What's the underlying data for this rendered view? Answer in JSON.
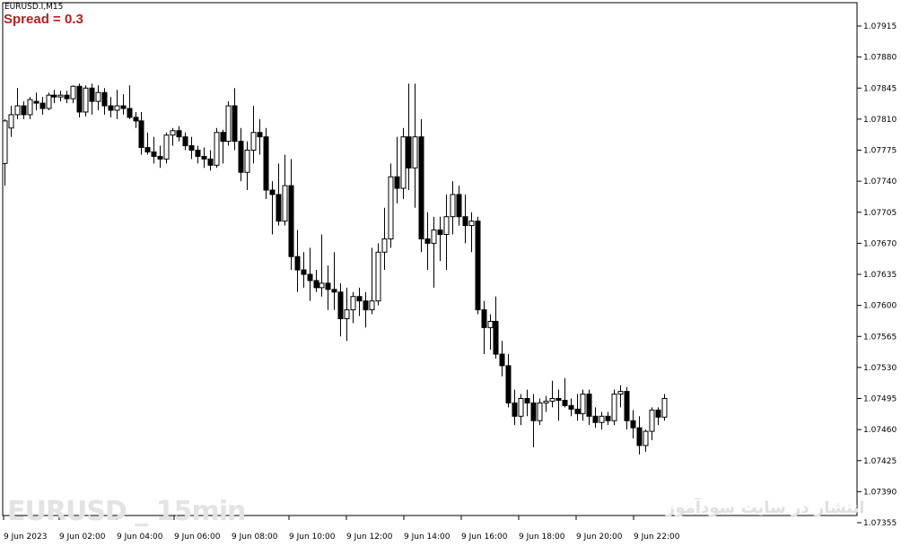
{
  "window": {
    "symbol_label": "EURUSD.I,M15",
    "spread_label": "Spread = 0.3",
    "watermark_left": "EURUSD _ 15min",
    "watermark_right": "انتشار در سایت سودآموز"
  },
  "chart_data": {
    "type": "candlestick",
    "title": "",
    "ylim": [
      1.0737,
      1.0795
    ],
    "y_ticks": [
      "1.07915",
      "1.07880",
      "1.07845",
      "1.07810",
      "1.07775",
      "1.07740",
      "1.07705",
      "1.07670",
      "1.07635",
      "1.07600",
      "1.07565",
      "1.07530",
      "1.07495",
      "1.07460",
      "1.07425",
      "1.07390",
      "1.07355"
    ],
    "x_ticks": [
      "9 Jun 2023",
      "9 Jun 02:00",
      "9 Jun 04:00",
      "9 Jun 06:00",
      "9 Jun 08:00",
      "9 Jun 10:00",
      "9 Jun 12:00",
      "9 Jun 14:00",
      "9 Jun 16:00",
      "9 Jun 18:00",
      "9 Jun 20:00",
      "9 Jun 22:00"
    ],
    "bullish_color": "#ffffff",
    "bearish_color": "#000000",
    "candles": [
      {
        "o": 1.0776,
        "h": 1.0781,
        "l": 1.07735,
        "c": 1.07808
      },
      {
        "o": 1.078,
        "h": 1.07825,
        "l": 1.0779,
        "c": 1.07815
      },
      {
        "o": 1.07815,
        "h": 1.07845,
        "l": 1.0781,
        "c": 1.07825
      },
      {
        "o": 1.07825,
        "h": 1.0783,
        "l": 1.0781,
        "c": 1.07815
      },
      {
        "o": 1.07815,
        "h": 1.07835,
        "l": 1.0781,
        "c": 1.07832
      },
      {
        "o": 1.0783,
        "h": 1.0784,
        "l": 1.0782,
        "c": 1.07828
      },
      {
        "o": 1.07828,
        "h": 1.07835,
        "l": 1.07815,
        "c": 1.07822
      },
      {
        "o": 1.07822,
        "h": 1.0784,
        "l": 1.0782,
        "c": 1.07837
      },
      {
        "o": 1.07837,
        "h": 1.07843,
        "l": 1.07828,
        "c": 1.07835
      },
      {
        "o": 1.07835,
        "h": 1.07842,
        "l": 1.0783,
        "c": 1.07837
      },
      {
        "o": 1.07837,
        "h": 1.07842,
        "l": 1.07828,
        "c": 1.07833
      },
      {
        "o": 1.07833,
        "h": 1.07848,
        "l": 1.07828,
        "c": 1.07847
      },
      {
        "o": 1.07847,
        "h": 1.0785,
        "l": 1.07812,
        "c": 1.07818
      },
      {
        "o": 1.07818,
        "h": 1.07848,
        "l": 1.07813,
        "c": 1.07845
      },
      {
        "o": 1.07845,
        "h": 1.0785,
        "l": 1.07815,
        "c": 1.0783
      },
      {
        "o": 1.0783,
        "h": 1.07848,
        "l": 1.0782,
        "c": 1.0784
      },
      {
        "o": 1.0784,
        "h": 1.07845,
        "l": 1.07815,
        "c": 1.07825
      },
      {
        "o": 1.07825,
        "h": 1.07835,
        "l": 1.07812,
        "c": 1.0782
      },
      {
        "o": 1.0782,
        "h": 1.07843,
        "l": 1.0781,
        "c": 1.07825
      },
      {
        "o": 1.07825,
        "h": 1.07838,
        "l": 1.07815,
        "c": 1.07822
      },
      {
        "o": 1.07822,
        "h": 1.07848,
        "l": 1.0781,
        "c": 1.07812
      },
      {
        "o": 1.07812,
        "h": 1.07818,
        "l": 1.078,
        "c": 1.07808
      },
      {
        "o": 1.07808,
        "h": 1.07818,
        "l": 1.0777,
        "c": 1.07778
      },
      {
        "o": 1.07778,
        "h": 1.07795,
        "l": 1.0777,
        "c": 1.07773
      },
      {
        "o": 1.07773,
        "h": 1.0779,
        "l": 1.0776,
        "c": 1.07768
      },
      {
        "o": 1.07768,
        "h": 1.0778,
        "l": 1.07755,
        "c": 1.07765
      },
      {
        "o": 1.07765,
        "h": 1.07795,
        "l": 1.0776,
        "c": 1.07792
      },
      {
        "o": 1.07792,
        "h": 1.078,
        "l": 1.0778,
        "c": 1.07797
      },
      {
        "o": 1.07797,
        "h": 1.07802,
        "l": 1.07785,
        "c": 1.0779
      },
      {
        "o": 1.0779,
        "h": 1.07795,
        "l": 1.07775,
        "c": 1.0778
      },
      {
        "o": 1.0778,
        "h": 1.0779,
        "l": 1.07765,
        "c": 1.07775
      },
      {
        "o": 1.07775,
        "h": 1.0778,
        "l": 1.0776,
        "c": 1.07768
      },
      {
        "o": 1.07768,
        "h": 1.07778,
        "l": 1.07755,
        "c": 1.07765
      },
      {
        "o": 1.07765,
        "h": 1.07775,
        "l": 1.07752,
        "c": 1.07758
      },
      {
        "o": 1.07758,
        "h": 1.078,
        "l": 1.07755,
        "c": 1.07795
      },
      {
        "o": 1.07795,
        "h": 1.07798,
        "l": 1.0776,
        "c": 1.07785
      },
      {
        "o": 1.07785,
        "h": 1.0783,
        "l": 1.0778,
        "c": 1.07825
      },
      {
        "o": 1.07825,
        "h": 1.07845,
        "l": 1.07775,
        "c": 1.07785
      },
      {
        "o": 1.07785,
        "h": 1.078,
        "l": 1.0774,
        "c": 1.0775
      },
      {
        "o": 1.0775,
        "h": 1.07785,
        "l": 1.0773,
        "c": 1.07775
      },
      {
        "o": 1.07775,
        "h": 1.07825,
        "l": 1.0776,
        "c": 1.07795
      },
      {
        "o": 1.07795,
        "h": 1.0781,
        "l": 1.0777,
        "c": 1.0779
      },
      {
        "o": 1.0779,
        "h": 1.078,
        "l": 1.0772,
        "c": 1.0773
      },
      {
        "o": 1.0773,
        "h": 1.0774,
        "l": 1.0768,
        "c": 1.07725
      },
      {
        "o": 1.07725,
        "h": 1.0776,
        "l": 1.0769,
        "c": 1.07695
      },
      {
        "o": 1.07695,
        "h": 1.0777,
        "l": 1.0769,
        "c": 1.07735
      },
      {
        "o": 1.07735,
        "h": 1.07765,
        "l": 1.0764,
        "c": 1.07655
      },
      {
        "o": 1.07655,
        "h": 1.07685,
        "l": 1.07615,
        "c": 1.0764
      },
      {
        "o": 1.0764,
        "h": 1.0766,
        "l": 1.0762,
        "c": 1.07635
      },
      {
        "o": 1.07635,
        "h": 1.07665,
        "l": 1.07605,
        "c": 1.07628
      },
      {
        "o": 1.07628,
        "h": 1.0764,
        "l": 1.07615,
        "c": 1.0762
      },
      {
        "o": 1.0762,
        "h": 1.0768,
        "l": 1.0761,
        "c": 1.07625
      },
      {
        "o": 1.07625,
        "h": 1.07645,
        "l": 1.07595,
        "c": 1.07618
      },
      {
        "o": 1.07618,
        "h": 1.0766,
        "l": 1.07595,
        "c": 1.07615
      },
      {
        "o": 1.07615,
        "h": 1.07625,
        "l": 1.07565,
        "c": 1.07585
      },
      {
        "o": 1.07585,
        "h": 1.0762,
        "l": 1.0756,
        "c": 1.07595
      },
      {
        "o": 1.07595,
        "h": 1.07615,
        "l": 1.0758,
        "c": 1.0761
      },
      {
        "o": 1.0761,
        "h": 1.0762,
        "l": 1.07588,
        "c": 1.07605
      },
      {
        "o": 1.07605,
        "h": 1.07615,
        "l": 1.07575,
        "c": 1.07595
      },
      {
        "o": 1.07595,
        "h": 1.07665,
        "l": 1.0759,
        "c": 1.07605
      },
      {
        "o": 1.07605,
        "h": 1.0767,
        "l": 1.076,
        "c": 1.0766
      },
      {
        "o": 1.0766,
        "h": 1.0771,
        "l": 1.0764,
        "c": 1.07675
      },
      {
        "o": 1.07675,
        "h": 1.0776,
        "l": 1.07665,
        "c": 1.07745
      },
      {
        "o": 1.07745,
        "h": 1.0779,
        "l": 1.07715,
        "c": 1.07732
      },
      {
        "o": 1.07732,
        "h": 1.078,
        "l": 1.0772,
        "c": 1.0779
      },
      {
        "o": 1.0779,
        "h": 1.0785,
        "l": 1.0773,
        "c": 1.07755
      },
      {
        "o": 1.07755,
        "h": 1.0785,
        "l": 1.0771,
        "c": 1.0779
      },
      {
        "o": 1.0779,
        "h": 1.0781,
        "l": 1.0766,
        "c": 1.07675
      },
      {
        "o": 1.07675,
        "h": 1.07705,
        "l": 1.0764,
        "c": 1.0767
      },
      {
        "o": 1.0767,
        "h": 1.077,
        "l": 1.0762,
        "c": 1.07685
      },
      {
        "o": 1.07685,
        "h": 1.077,
        "l": 1.0765,
        "c": 1.0768
      },
      {
        "o": 1.0768,
        "h": 1.07725,
        "l": 1.0764,
        "c": 1.077
      },
      {
        "o": 1.077,
        "h": 1.0774,
        "l": 1.0768,
        "c": 1.07725
      },
      {
        "o": 1.07725,
        "h": 1.07735,
        "l": 1.0769,
        "c": 1.077
      },
      {
        "o": 1.077,
        "h": 1.07725,
        "l": 1.0767,
        "c": 1.0769
      },
      {
        "o": 1.0769,
        "h": 1.07705,
        "l": 1.0766,
        "c": 1.07695
      },
      {
        "o": 1.07695,
        "h": 1.077,
        "l": 1.0759,
        "c": 1.07595
      },
      {
        "o": 1.07595,
        "h": 1.07605,
        "l": 1.07545,
        "c": 1.07575
      },
      {
        "o": 1.07575,
        "h": 1.0759,
        "l": 1.0755,
        "c": 1.07582
      },
      {
        "o": 1.07582,
        "h": 1.0761,
        "l": 1.0754,
        "c": 1.07545
      },
      {
        "o": 1.07545,
        "h": 1.0756,
        "l": 1.0752,
        "c": 1.07532
      },
      {
        "o": 1.07532,
        "h": 1.07545,
        "l": 1.07485,
        "c": 1.0749
      },
      {
        "o": 1.0749,
        "h": 1.07505,
        "l": 1.07465,
        "c": 1.07475
      },
      {
        "o": 1.07475,
        "h": 1.075,
        "l": 1.07465,
        "c": 1.07495
      },
      {
        "o": 1.07495,
        "h": 1.07505,
        "l": 1.07475,
        "c": 1.0749
      },
      {
        "o": 1.0749,
        "h": 1.075,
        "l": 1.0744,
        "c": 1.0747
      },
      {
        "o": 1.0747,
        "h": 1.07495,
        "l": 1.07465,
        "c": 1.0749
      },
      {
        "o": 1.0749,
        "h": 1.07498,
        "l": 1.0748,
        "c": 1.07492
      },
      {
        "o": 1.07492,
        "h": 1.07515,
        "l": 1.07485,
        "c": 1.07495
      },
      {
        "o": 1.07495,
        "h": 1.07505,
        "l": 1.0747,
        "c": 1.07493
      },
      {
        "o": 1.07493,
        "h": 1.07518,
        "l": 1.07485,
        "c": 1.07487
      },
      {
        "o": 1.07487,
        "h": 1.07495,
        "l": 1.07475,
        "c": 1.07483
      },
      {
        "o": 1.07483,
        "h": 1.075,
        "l": 1.0747,
        "c": 1.07478
      },
      {
        "o": 1.07478,
        "h": 1.07505,
        "l": 1.0747,
        "c": 1.075
      },
      {
        "o": 1.075,
        "h": 1.07505,
        "l": 1.07465,
        "c": 1.07475
      },
      {
        "o": 1.07475,
        "h": 1.07485,
        "l": 1.07462,
        "c": 1.07468
      },
      {
        "o": 1.07468,
        "h": 1.0748,
        "l": 1.0746,
        "c": 1.07475
      },
      {
        "o": 1.07475,
        "h": 1.0748,
        "l": 1.07465,
        "c": 1.0747
      },
      {
        "o": 1.0747,
        "h": 1.07505,
        "l": 1.07465,
        "c": 1.075
      },
      {
        "o": 1.075,
        "h": 1.0751,
        "l": 1.07485,
        "c": 1.07503
      },
      {
        "o": 1.07503,
        "h": 1.07508,
        "l": 1.0746,
        "c": 1.0747
      },
      {
        "o": 1.0747,
        "h": 1.07482,
        "l": 1.0745,
        "c": 1.07462
      },
      {
        "o": 1.07462,
        "h": 1.07475,
        "l": 1.07432,
        "c": 1.07442
      },
      {
        "o": 1.07442,
        "h": 1.0746,
        "l": 1.07435,
        "c": 1.07458
      },
      {
        "o": 1.07458,
        "h": 1.07485,
        "l": 1.07448,
        "c": 1.07482
      },
      {
        "o": 1.07482,
        "h": 1.07485,
        "l": 1.07465,
        "c": 1.07474
      },
      {
        "o": 1.07474,
        "h": 1.075,
        "l": 1.0747,
        "c": 1.07495
      }
    ]
  }
}
